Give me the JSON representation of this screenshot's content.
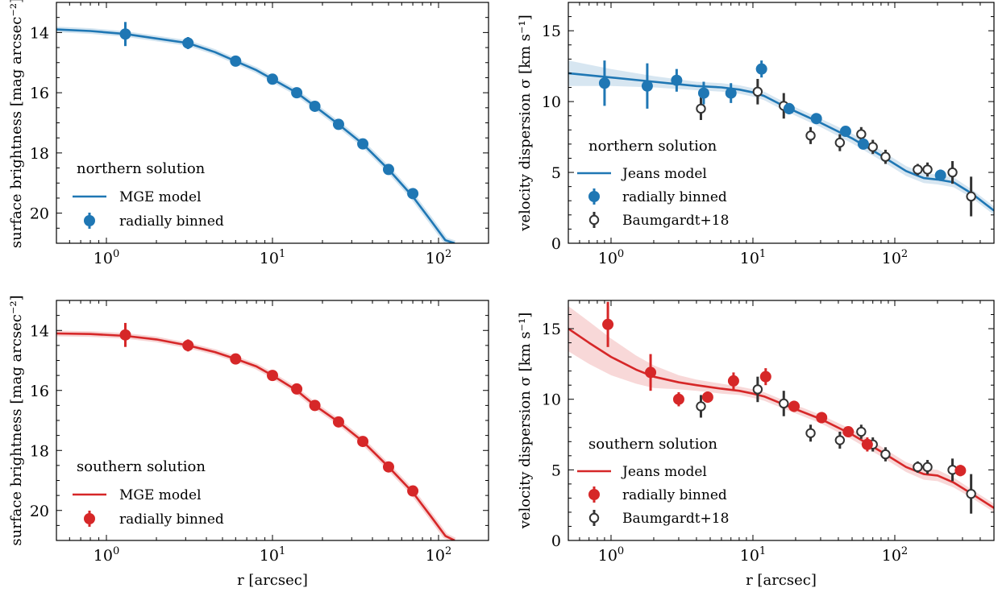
{
  "figure": {
    "x_axis_label": "r [arcsec]",
    "sb_ylabel": "surface brightness [mag arcsec⁻²]",
    "vd_ylabel": "velocity dispersion σ [km s⁻¹]"
  },
  "colors": {
    "northern": "#1f77b4",
    "southern": "#d62728",
    "baumgardt": "#333333"
  },
  "chart_data": [
    {
      "id": "north-sb",
      "type": "line",
      "variant": "sb",
      "color_key": "northern",
      "legend_title": "northern solution",
      "legend_entries": [
        "MGE model",
        "radially binned"
      ],
      "xlabel": "",
      "ylabel": "surface brightness [mag arcsec⁻²]",
      "x_scale": "log",
      "xlim": [
        0.5,
        200
      ],
      "ylim": [
        21,
        13
      ],
      "y_inverted": true,
      "yticks": [
        14,
        16,
        18,
        20
      ],
      "xticks": [
        1,
        10,
        100
      ],
      "xtick_labels": [
        "10^0",
        "10^1",
        "10^2"
      ],
      "model": {
        "name": "MGE model",
        "x": [
          0.5,
          0.8,
          1.3,
          2,
          3.1,
          4.5,
          6,
          8,
          10,
          14,
          18,
          25,
          35,
          50,
          70,
          90,
          110,
          125
        ],
        "y": [
          13.9,
          13.95,
          14.05,
          14.2,
          14.35,
          14.65,
          14.95,
          15.25,
          15.55,
          16.0,
          16.45,
          17.05,
          17.7,
          18.55,
          19.45,
          20.25,
          20.9,
          21.0
        ]
      },
      "points": {
        "name": "radially binned",
        "x": [
          1.3,
          3.1,
          6.0,
          10.0,
          14.0,
          18.0,
          25.0,
          35.0,
          50.0,
          70.0
        ],
        "y": [
          14.05,
          14.35,
          14.95,
          15.55,
          16.0,
          16.45,
          17.05,
          17.7,
          18.55,
          19.35
        ],
        "err": [
          0.4,
          0.2,
          0.05,
          0.05,
          0.05,
          0.05,
          0.05,
          0.05,
          0.05,
          0.05
        ]
      }
    },
    {
      "id": "north-vd",
      "type": "line",
      "variant": "vd",
      "color_key": "northern",
      "legend_title": "northern solution",
      "legend_entries": [
        "Jeans model",
        "radially binned",
        "Baumgardt+18"
      ],
      "xlabel": "",
      "ylabel": "velocity dispersion σ [km s⁻¹]",
      "x_scale": "log",
      "xlim": [
        0.5,
        500
      ],
      "ylim": [
        0,
        17
      ],
      "yticks": [
        0,
        5,
        10,
        15
      ],
      "xticks": [
        1,
        10,
        100
      ],
      "xtick_labels": [
        "10^0",
        "10^1",
        "10^2"
      ],
      "model": {
        "name": "Jeans model",
        "x": [
          0.5,
          1,
          2,
          4,
          6,
          8,
          10,
          12,
          15,
          20,
          30,
          50,
          80,
          120,
          160,
          200,
          260,
          350,
          500
        ],
        "y": [
          12.0,
          11.7,
          11.4,
          11.1,
          11.0,
          10.85,
          10.65,
          10.4,
          9.9,
          9.3,
          8.5,
          7.4,
          6.2,
          5.1,
          4.6,
          4.5,
          4.3,
          3.5,
          2.3
        ],
        "band_halfwidth": [
          0.9,
          0.6,
          0.4,
          0.3,
          0.3,
          0.3,
          0.3,
          0.3,
          0.3,
          0.3,
          0.3,
          0.35,
          0.35,
          0.35,
          0.35,
          0.35,
          0.35,
          0.3,
          0.3
        ]
      },
      "points": {
        "name": "radially binned",
        "x": [
          0.9,
          1.8,
          2.9,
          4.5,
          7.0,
          11.5,
          18.0,
          28.0,
          45.0,
          60.0,
          210.0
        ],
        "y": [
          11.3,
          11.1,
          11.5,
          10.6,
          10.6,
          12.3,
          9.5,
          8.8,
          7.9,
          7.0,
          4.8
        ],
        "err": [
          1.6,
          1.6,
          0.8,
          0.8,
          0.7,
          0.6,
          0.4,
          0.3,
          0.3,
          0.3,
          0.4
        ]
      },
      "reference": {
        "name": "Baumgardt+18",
        "x": [
          4.3,
          10.8,
          16.5,
          25.5,
          41.0,
          58.0,
          70.0,
          86.0,
          145.0,
          170.0,
          255.0,
          345.0
        ],
        "y": [
          9.5,
          10.7,
          9.7,
          7.6,
          7.1,
          7.7,
          6.8,
          6.1,
          5.2,
          5.2,
          5.0,
          3.3
        ],
        "err": [
          0.8,
          0.9,
          0.9,
          0.6,
          0.6,
          0.5,
          0.5,
          0.5,
          0.4,
          0.5,
          0.8,
          1.4
        ]
      }
    },
    {
      "id": "south-sb",
      "type": "line",
      "variant": "sb",
      "color_key": "southern",
      "legend_title": "southern solution",
      "legend_entries": [
        "MGE model",
        "radially binned"
      ],
      "xlabel": "r [arcsec]",
      "ylabel": "surface brightness [mag arcsec⁻²]",
      "x_scale": "log",
      "xlim": [
        0.5,
        200
      ],
      "ylim": [
        21,
        13
      ],
      "y_inverted": true,
      "yticks": [
        14,
        16,
        18,
        20
      ],
      "xticks": [
        1,
        10,
        100
      ],
      "xtick_labels": [
        "10^0",
        "10^1",
        "10^2"
      ],
      "model": {
        "name": "MGE model",
        "x": [
          0.5,
          0.8,
          1.3,
          2,
          3.1,
          4.5,
          6,
          8,
          10,
          14,
          18,
          25,
          35,
          50,
          70,
          90,
          110,
          125
        ],
        "y": [
          14.1,
          14.12,
          14.18,
          14.3,
          14.5,
          14.72,
          14.95,
          15.2,
          15.5,
          16.0,
          16.5,
          17.05,
          17.7,
          18.55,
          19.4,
          20.2,
          20.85,
          21.0
        ]
      },
      "points": {
        "name": "radially binned",
        "x": [
          1.3,
          3.1,
          6.0,
          10.0,
          14.0,
          18.0,
          25.0,
          35.0,
          50.0,
          70.0
        ],
        "y": [
          14.15,
          14.5,
          14.95,
          15.5,
          15.95,
          16.5,
          17.05,
          17.7,
          18.55,
          19.35
        ],
        "err": [
          0.4,
          0.2,
          0.05,
          0.05,
          0.05,
          0.05,
          0.05,
          0.05,
          0.05,
          0.05
        ]
      }
    },
    {
      "id": "south-vd",
      "type": "line",
      "variant": "vd",
      "color_key": "southern",
      "legend_title": "southern solution",
      "legend_entries": [
        "Jeans model",
        "radially binned",
        "Baumgardt+18"
      ],
      "xlabel": "r [arcsec]",
      "ylabel": "velocity dispersion σ [km s⁻¹]",
      "x_scale": "log",
      "xlim": [
        0.5,
        500
      ],
      "ylim": [
        0,
        17
      ],
      "yticks": [
        0,
        5,
        10,
        15
      ],
      "xticks": [
        1,
        10,
        100
      ],
      "xtick_labels": [
        "10^0",
        "10^1",
        "10^2"
      ],
      "model": {
        "name": "Jeans model",
        "x": [
          0.5,
          0.7,
          1,
          1.5,
          2,
          3,
          4,
          6,
          8,
          10,
          12,
          15,
          20,
          30,
          50,
          80,
          120,
          160,
          200,
          260,
          350,
          500
        ],
        "y": [
          15.0,
          14.0,
          13.0,
          12.1,
          11.6,
          11.2,
          11.0,
          10.75,
          10.6,
          10.4,
          10.2,
          9.8,
          9.3,
          8.6,
          7.5,
          6.3,
          5.2,
          4.7,
          4.6,
          4.1,
          3.3,
          2.3
        ],
        "band_halfwidth": [
          1.6,
          1.5,
          1.3,
          1.0,
          0.8,
          0.5,
          0.4,
          0.35,
          0.3,
          0.3,
          0.3,
          0.3,
          0.3,
          0.3,
          0.35,
          0.35,
          0.35,
          0.4,
          0.4,
          0.35,
          0.3,
          0.3
        ]
      },
      "points": {
        "name": "radially binned",
        "x": [
          0.95,
          1.9,
          3.0,
          4.8,
          7.3,
          12.3,
          19.5,
          30.5,
          47.0,
          64.0,
          290.0
        ],
        "y": [
          15.3,
          11.9,
          10.0,
          10.15,
          11.3,
          11.6,
          9.5,
          8.7,
          7.7,
          6.8,
          4.95
        ],
        "err": [
          1.6,
          1.3,
          0.5,
          0.4,
          0.6,
          0.6,
          0.4,
          0.4,
          0.35,
          0.5,
          0.4
        ]
      },
      "reference": {
        "name": "Baumgardt+18",
        "x": [
          4.3,
          10.8,
          16.5,
          25.5,
          41.0,
          58.0,
          70.0,
          86.0,
          145.0,
          170.0,
          255.0,
          345.0
        ],
        "y": [
          9.5,
          10.7,
          9.7,
          7.6,
          7.1,
          7.7,
          6.8,
          6.1,
          5.2,
          5.2,
          5.0,
          3.3
        ],
        "err": [
          0.8,
          0.9,
          0.9,
          0.6,
          0.6,
          0.5,
          0.5,
          0.5,
          0.4,
          0.5,
          0.8,
          1.4
        ]
      }
    }
  ]
}
